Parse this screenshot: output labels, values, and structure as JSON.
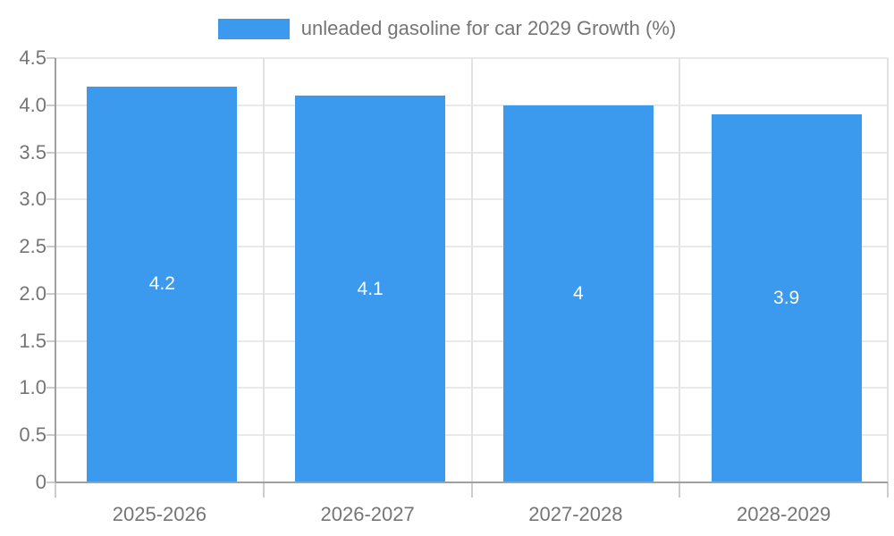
{
  "legend": {
    "label": "unleaded gasoline for car 2029 Growth (%)"
  },
  "colors": {
    "bar": "#3b99ee",
    "bar_label": "#ffffff",
    "axis_text": "#757575",
    "axis_line": "#a0a0a0",
    "tick_mark": "#cccccc",
    "grid_horizontal": "#e9e9e9",
    "grid_vertical": "#e2e2e2",
    "background": "#ffffff"
  },
  "chart_data": {
    "type": "bar",
    "title": "",
    "legend": "unleaded gasoline for car 2029 Growth (%)",
    "legend_position": "top",
    "categories": [
      "2025-2026",
      "2026-2027",
      "2027-2028",
      "2028-2029"
    ],
    "values": [
      4.2,
      4.1,
      4,
      3.9
    ],
    "bar_value_labels": [
      "4.2",
      "4.1",
      "4",
      "3.9"
    ],
    "xlabel": "",
    "ylabel": "",
    "ylim": [
      0,
      4.5
    ],
    "ytick_step": 0.5,
    "ytick_labels": [
      "0",
      "0.5",
      "1.0",
      "1.5",
      "2.0",
      "2.5",
      "3.0",
      "3.5",
      "4.0",
      "4.5"
    ],
    "grid": true
  }
}
